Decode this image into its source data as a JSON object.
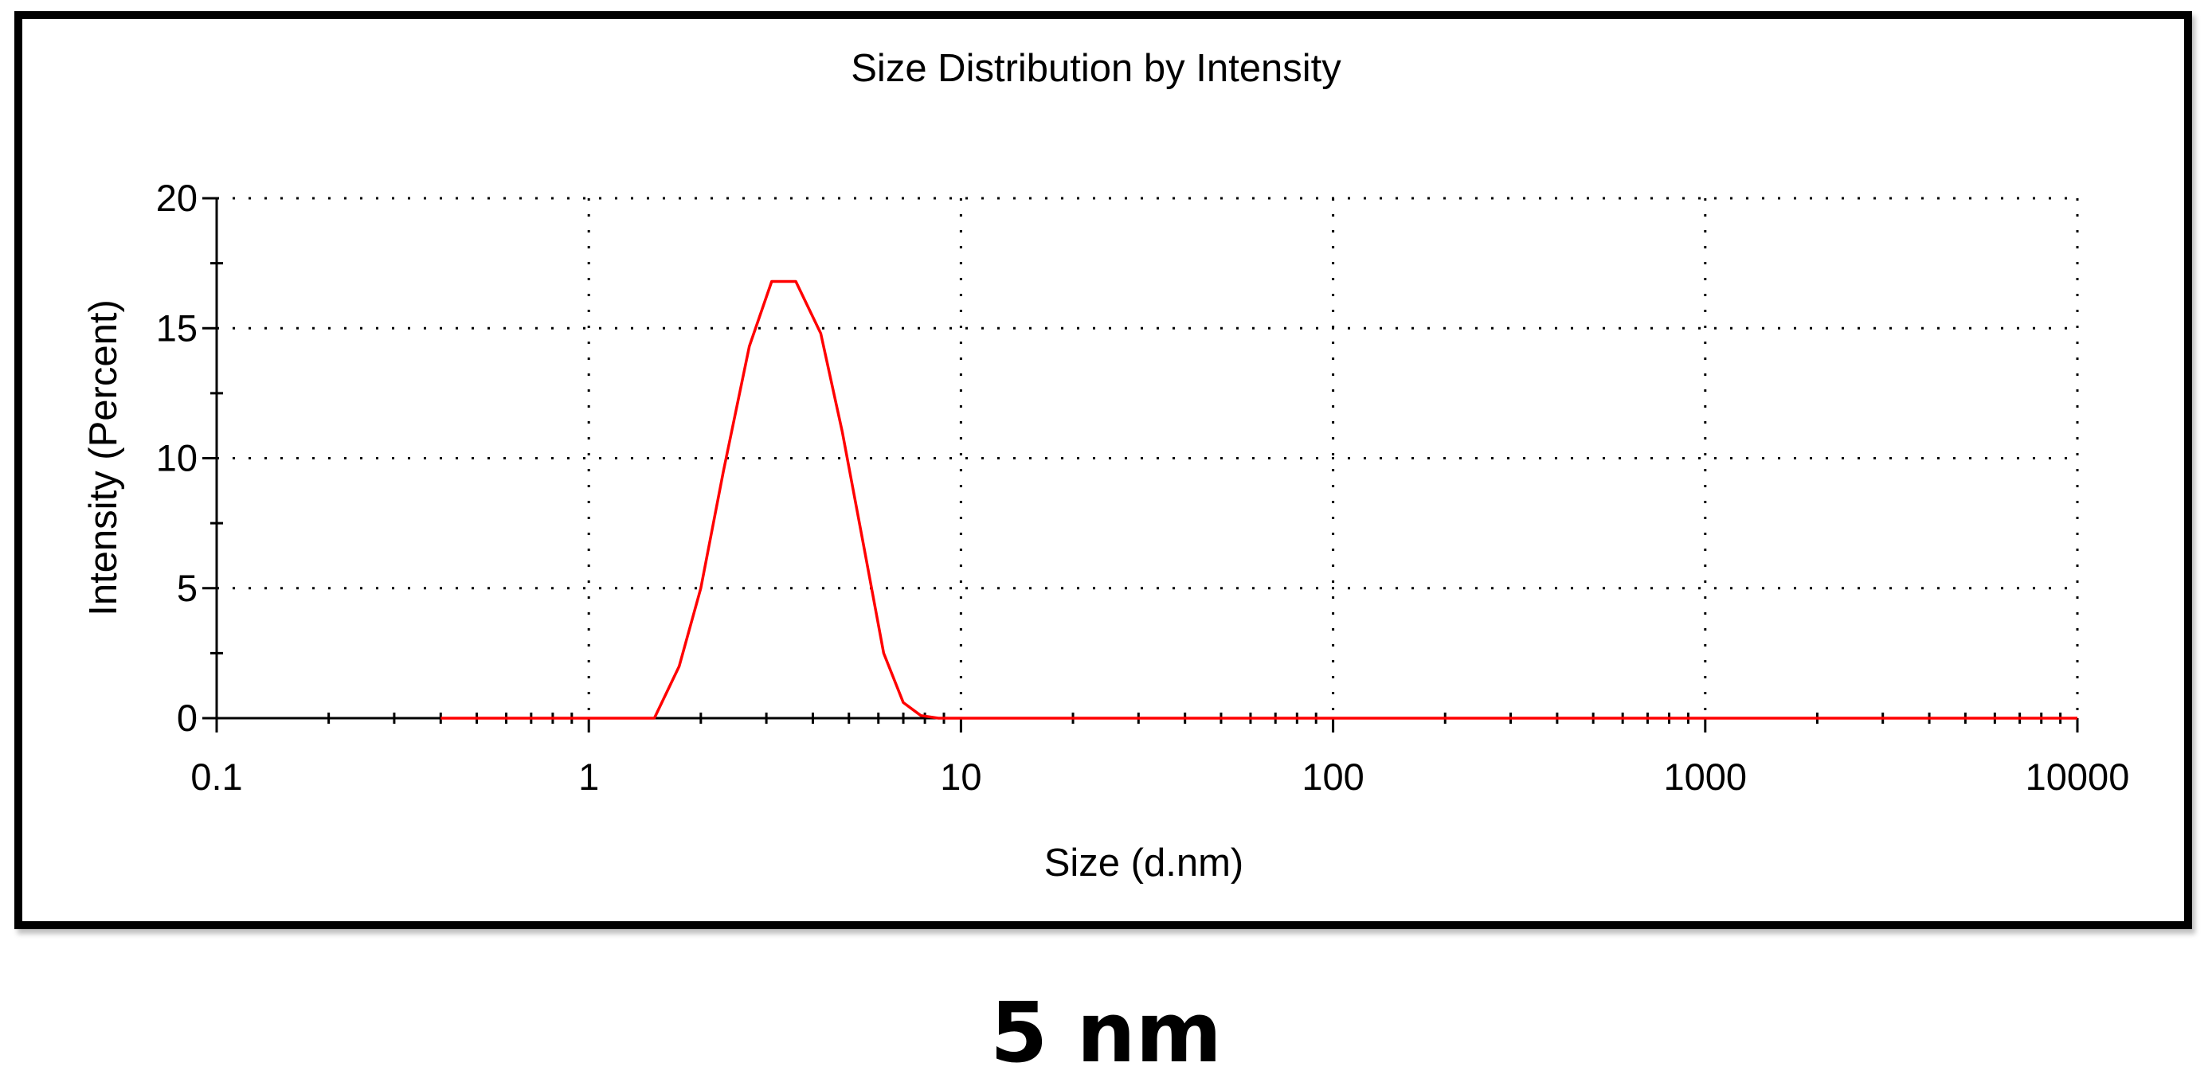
{
  "caption": "5 nm",
  "chart_data": {
    "type": "line",
    "title": "Size Distribution by Intensity",
    "xlabel": "Size (d.nm)",
    "ylabel": "Intensity (Percent)",
    "x_scale": "log",
    "xlim": [
      0.1,
      10000
    ],
    "ylim": [
      0,
      20
    ],
    "x_ticks": [
      0.1,
      1,
      10,
      100,
      1000,
      10000
    ],
    "x_tick_labels": [
      "0.1",
      "1",
      "10",
      "100",
      "1000",
      "10000"
    ],
    "y_ticks": [
      0,
      5,
      10,
      15,
      20
    ],
    "y_tick_labels": [
      "0",
      "5",
      "10",
      "15",
      "20"
    ],
    "grid": true,
    "series": [
      {
        "color": "#ff0000",
        "x": [
          0.4,
          1.0,
          1.5,
          1.75,
          2.0,
          2.3,
          2.7,
          3.1,
          3.6,
          4.2,
          4.8,
          5.5,
          6.2,
          7.0,
          7.8,
          8.7,
          10,
          100,
          1000,
          10000
        ],
        "y": [
          0,
          0,
          0,
          2.0,
          5.0,
          9.5,
          14.3,
          16.8,
          16.8,
          14.8,
          11.0,
          6.5,
          2.5,
          0.6,
          0.1,
          0,
          0,
          0,
          0,
          0
        ]
      }
    ]
  }
}
